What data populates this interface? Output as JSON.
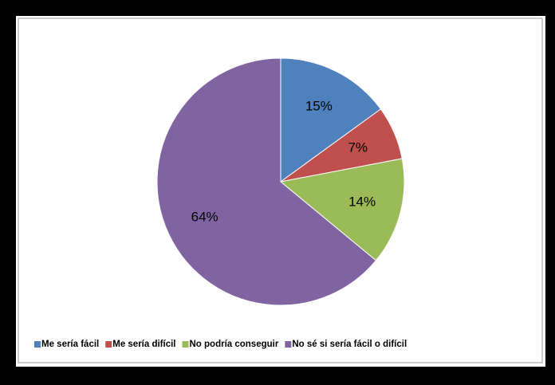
{
  "chart_data": {
    "type": "pie",
    "categories": [
      "Me sería fácil",
      "Me sería difícil",
      "No podría conseguir",
      "No sé si sería fácil o difícil"
    ],
    "values": [
      15,
      7,
      14,
      64
    ],
    "value_labels": [
      "15%",
      "7%",
      "14%",
      "64%"
    ],
    "colors": [
      "#4f81bd",
      "#c0504d",
      "#9bbb59",
      "#8064a2"
    ],
    "legend": "bottom"
  }
}
